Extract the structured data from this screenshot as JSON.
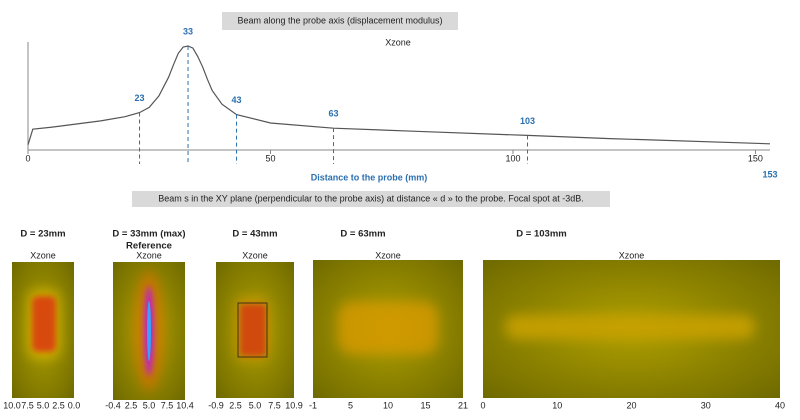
{
  "chart_data": {
    "type": "line",
    "title": "Beam along the probe axis (displacement modulus)",
    "subtitle": "Xzone",
    "x_label": "Distance to the probe (mm)",
    "xlim": [
      0,
      153
    ],
    "xticks": [
      0,
      50,
      100,
      150
    ],
    "ylim": [
      0,
      1
    ],
    "color": "#555555",
    "x": [
      0,
      1,
      5,
      10,
      15,
      20,
      23,
      25,
      27,
      29,
      30,
      31,
      32,
      33,
      34,
      35,
      36,
      37,
      38,
      40,
      43,
      50,
      63,
      80,
      103,
      120,
      153
    ],
    "values": [
      0.05,
      0.2,
      0.22,
      0.25,
      0.28,
      0.32,
      0.36,
      0.41,
      0.52,
      0.7,
      0.82,
      0.93,
      0.99,
      1.0,
      0.98,
      0.9,
      0.8,
      0.68,
      0.57,
      0.44,
      0.34,
      0.26,
      0.21,
      0.18,
      0.14,
      0.11,
      0.06
    ],
    "markers": [
      23,
      33,
      43,
      63,
      103
    ]
  },
  "section_title": "Beam s in the XY plane (perpendicular to the probe axis) at distance « d » to the probe. Focal spot at -3dB.",
  "panel_header": "Xzone",
  "panels": [
    {
      "label": "D = 23mm",
      "xticks": [
        "10.0",
        "7.5",
        "5.0",
        "2.5",
        "0.0"
      ]
    },
    {
      "label": "D = 33mm (max)",
      "sublabel": "Reference",
      "xticks": [
        "-0.4",
        "2.5",
        "5.0",
        "7.5",
        "10.4"
      ]
    },
    {
      "label": "D = 43mm",
      "xticks": [
        "-0.9",
        "2.5",
        "5.0",
        "7.5",
        "10.9"
      ]
    },
    {
      "label": "D = 63mm",
      "xticks": [
        "-1",
        "5",
        "10",
        "15",
        "21"
      ]
    },
    {
      "label": "D = 103mm",
      "xticks": [
        "0",
        "10",
        "20",
        "30",
        "40"
      ]
    }
  ]
}
